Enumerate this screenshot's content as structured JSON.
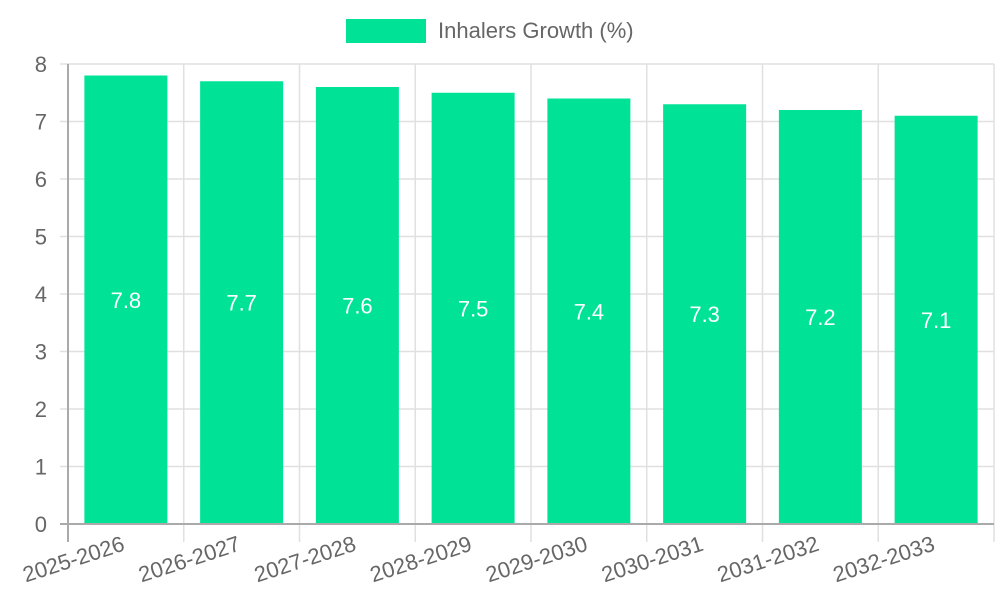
{
  "legend": {
    "label": "Inhalers Growth (%)",
    "color": "#00e396"
  },
  "colors": {
    "bar": "#00e396",
    "grid": "#e0e0e0",
    "axis": "#aaaaaa",
    "tick_text": "#666666",
    "data_label": "#ffffff"
  },
  "chart_data": {
    "type": "bar",
    "title": "",
    "xlabel": "",
    "ylabel": "",
    "categories": [
      "2025-2026",
      "2026-2027",
      "2027-2028",
      "2028-2029",
      "2029-2030",
      "2030-2031",
      "2031-2032",
      "2032-2033"
    ],
    "series": [
      {
        "name": "Inhalers Growth (%)",
        "values": [
          7.8,
          7.7,
          7.6,
          7.5,
          7.4,
          7.3,
          7.2,
          7.1
        ]
      }
    ],
    "ylim": [
      0,
      8
    ],
    "yticks": [
      0,
      1,
      2,
      3,
      4,
      5,
      6,
      7,
      8
    ],
    "grid": true,
    "legend_position": "top",
    "data_labels": true
  }
}
